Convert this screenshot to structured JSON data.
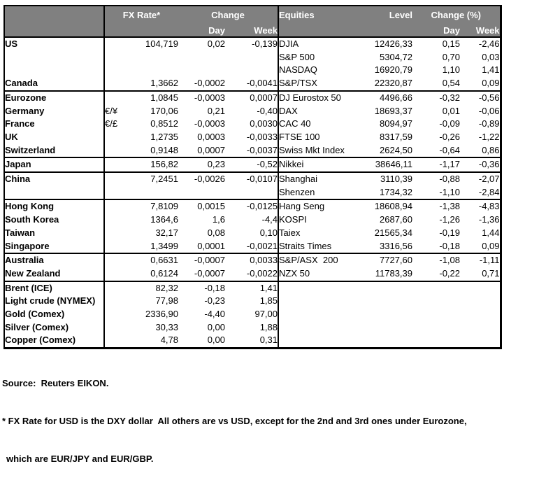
{
  "colors": {
    "page-bg": "#ffffff",
    "header-bg": "#808080",
    "header-text": "#ffffff",
    "border-color": "#000000",
    "body-text": "#000000"
  },
  "header": {
    "fx_rate": "FX Rate*",
    "change": "Change",
    "day": "Day",
    "week": "Week",
    "equities": "Equities",
    "level": "Level",
    "change_pct": "Change (%)"
  },
  "rows": [
    {
      "group_start": false,
      "fx_label": "US",
      "indent": false,
      "pair": "",
      "fx_rate": "104,719",
      "fx_day": "0,02",
      "fx_week": "-0,139",
      "equity": "DJIA",
      "level": "12426,33",
      "eq_day": "0,15",
      "eq_week": "-2,46"
    },
    {
      "group_start": false,
      "fx_label": "",
      "indent": false,
      "pair": "",
      "fx_rate": "",
      "fx_day": "",
      "fx_week": "",
      "equity": "S&P 500",
      "level": "5304,72",
      "eq_day": "0,70",
      "eq_week": "0,03"
    },
    {
      "group_start": false,
      "fx_label": "",
      "indent": false,
      "pair": "",
      "fx_rate": "",
      "fx_day": "",
      "fx_week": "",
      "equity": "NASDAQ",
      "level": "16920,79",
      "eq_day": "1,10",
      "eq_week": "1,41"
    },
    {
      "group_start": false,
      "fx_label": "Canada",
      "indent": false,
      "pair": "",
      "fx_rate": "1,3662",
      "fx_day": "-0,0002",
      "fx_week": "-0,0041",
      "equity": "S&P/TSX",
      "level": "22320,87",
      "eq_day": "0,54",
      "eq_week": "0,09"
    },
    {
      "group_start": true,
      "fx_label": "Eurozone",
      "indent": false,
      "pair": "",
      "fx_rate": "1,0845",
      "fx_day": "-0,0003",
      "fx_week": "0,0007",
      "equity": "DJ Eurostox 50",
      "level": "4496,66",
      "eq_day": "-0,32",
      "eq_week": "-0,56"
    },
    {
      "group_start": false,
      "fx_label": "Germany",
      "indent": true,
      "pair": "€/¥",
      "fx_rate": "170,06",
      "fx_day": "0,21",
      "fx_week": "-0,40",
      "equity": "DAX",
      "level": "18693,37",
      "eq_day": "0,01",
      "eq_week": "-0,06"
    },
    {
      "group_start": false,
      "fx_label": "France",
      "indent": true,
      "pair": "€/£",
      "fx_rate": "0,8512",
      "fx_day": "-0,0003",
      "fx_week": "0,0030",
      "equity": "CAC 40",
      "level": "8094,97",
      "eq_day": "-0,09",
      "eq_week": "-0,89"
    },
    {
      "group_start": false,
      "fx_label": "UK",
      "indent": false,
      "pair": "",
      "fx_rate": "1,2735",
      "fx_day": "0,0003",
      "fx_week": "-0,0033",
      "equity": "FTSE 100",
      "level": "8317,59",
      "eq_day": "-0,26",
      "eq_week": "-1,22"
    },
    {
      "group_start": false,
      "fx_label": "Switzerland",
      "indent": false,
      "pair": "",
      "fx_rate": "0,9148",
      "fx_day": "0,0007",
      "fx_week": "-0,0037",
      "equity": "Swiss Mkt Index",
      "level": "2624,50",
      "eq_day": "-0,64",
      "eq_week": "0,86"
    },
    {
      "group_start": true,
      "fx_label": "Japan",
      "indent": false,
      "pair": "",
      "fx_rate": "156,82",
      "fx_day": "0,23",
      "fx_week": "-0,52",
      "equity": "Nikkei",
      "level": "38646,11",
      "eq_day": "-1,17",
      "eq_week": "-0,36"
    },
    {
      "group_start": true,
      "fx_label": "China",
      "indent": false,
      "pair": "",
      "fx_rate": "7,2451",
      "fx_day": "-0,0026",
      "fx_week": "-0,0107",
      "equity": "Shanghai",
      "level": "3110,39",
      "eq_day": "-0,88",
      "eq_week": "-2,07"
    },
    {
      "group_start": false,
      "fx_label": "",
      "indent": false,
      "pair": "",
      "fx_rate": "",
      "fx_day": "",
      "fx_week": "",
      "equity": "Shenzen",
      "level": "1734,32",
      "eq_day": "-1,10",
      "eq_week": "-2,84"
    },
    {
      "group_start": true,
      "fx_label": "Hong Kong",
      "indent": false,
      "pair": "",
      "fx_rate": "7,8109",
      "fx_day": "0,0015",
      "fx_week": "-0,0125",
      "equity": "Hang Seng",
      "level": "18608,94",
      "eq_day": "-1,38",
      "eq_week": "-4,83"
    },
    {
      "group_start": false,
      "fx_label": "South Korea",
      "indent": false,
      "pair": "",
      "fx_rate": "1364,6",
      "fx_day": "1,6",
      "fx_week": "-4,4",
      "equity": "KOSPI",
      "level": "2687,60",
      "eq_day": "-1,26",
      "eq_week": "-1,36"
    },
    {
      "group_start": false,
      "fx_label": "Taiwan",
      "indent": false,
      "pair": "",
      "fx_rate": "32,17",
      "fx_day": "0,08",
      "fx_week": "0,10",
      "equity": "Taiex",
      "level": "21565,34",
      "eq_day": "-0,19",
      "eq_week": "1,44"
    },
    {
      "group_start": false,
      "fx_label": "Singapore",
      "indent": false,
      "pair": "",
      "fx_rate": "1,3499",
      "fx_day": "0,0001",
      "fx_week": "-0,0021",
      "equity": "Straits Times",
      "level": "3316,56",
      "eq_day": "-0,18",
      "eq_week": "0,09"
    },
    {
      "group_start": true,
      "fx_label": "Australia",
      "indent": false,
      "pair": "",
      "fx_rate": "0,6631",
      "fx_day": "-0,0007",
      "fx_week": "0,0033",
      "equity": "S&P/ASX  200",
      "level": "7727,60",
      "eq_day": "-1,08",
      "eq_week": "-1,11"
    },
    {
      "group_start": false,
      "fx_label": "New Zealand",
      "indent": false,
      "pair": "",
      "fx_rate": "0,6124",
      "fx_day": "-0,0007",
      "fx_week": "-0,0022",
      "equity": "NZX 50",
      "level": "11783,39",
      "eq_day": "-0,22",
      "eq_week": "0,71"
    },
    {
      "group_start": true,
      "fx_label": "Brent (ICE)",
      "indent": false,
      "pair": "",
      "fx_rate": "82,32",
      "fx_day": "-0,18",
      "fx_week": "1,41",
      "equity": "",
      "level": "",
      "eq_day": "",
      "eq_week": ""
    },
    {
      "group_start": false,
      "fx_label": "Light crude (NYMEX)",
      "indent": false,
      "pair": "",
      "fx_rate": "77,98",
      "fx_day": "-0,23",
      "fx_week": "1,85",
      "equity": "",
      "level": "",
      "eq_day": "",
      "eq_week": ""
    },
    {
      "group_start": false,
      "fx_label": "Gold (Comex)",
      "indent": false,
      "pair": "",
      "fx_rate": "2336,90",
      "fx_day": "-4,40",
      "fx_week": "97,00",
      "equity": "",
      "level": "",
      "eq_day": "",
      "eq_week": ""
    },
    {
      "group_start": false,
      "fx_label": "Silver (Comex)",
      "indent": false,
      "pair": "",
      "fx_rate": "30,33",
      "fx_day": "0,00",
      "fx_week": "1,88",
      "equity": "",
      "level": "",
      "eq_day": "",
      "eq_week": ""
    },
    {
      "group_start": false,
      "fx_label": "Copper (Comex)",
      "indent": false,
      "pair": "",
      "fx_rate": "4,78",
      "fx_day": "0,00",
      "fx_week": "0,31",
      "equity": "",
      "level": "",
      "eq_day": "",
      "eq_week": ""
    }
  ],
  "footer": {
    "source": "Source:  Reuters EIKON.",
    "note_line1": "* FX Rate for USD is the DXY dollar  All others are vs USD, except for the 2nd and 3rd ones under Eurozone,",
    "note_line2": "which are EUR/JPY and EUR/GBP."
  }
}
